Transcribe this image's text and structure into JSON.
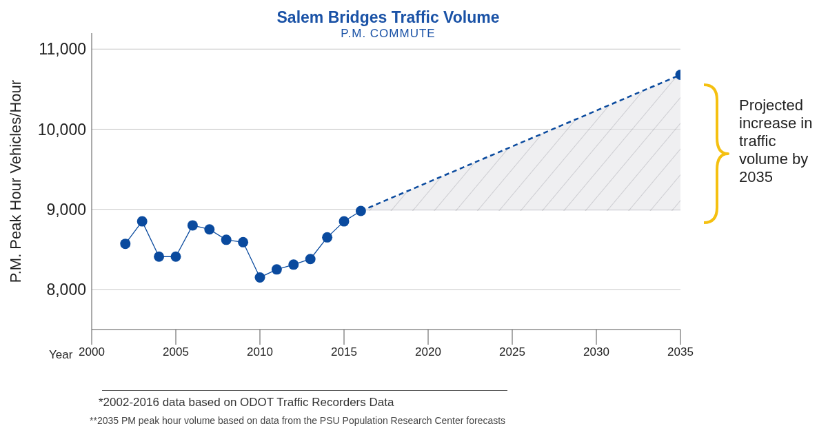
{
  "chart_data": {
    "type": "line",
    "title": "Salem Bridges Traffic Volume",
    "subtitle": "P.M. COMMUTE",
    "xlabel": "Year",
    "ylabel": "P.M. Peak Hour Vehicles/Hour",
    "series": [
      {
        "color": "#0a4a9e",
        "x": [
          2002,
          2003,
          2004,
          2005,
          2006,
          2007,
          2008,
          2009,
          2010,
          2011,
          2012,
          2013,
          2014,
          2015,
          2016
        ],
        "values": [
          8570,
          8850,
          8410,
          8410,
          8800,
          8750,
          8620,
          8590,
          8150,
          8250,
          8310,
          8380,
          8650,
          8850,
          8980
        ]
      },
      {
        "color": "#0a4a9e",
        "line_style": "dashed",
        "x": [
          2016,
          2035
        ],
        "values": [
          8980,
          10680
        ],
        "lower": [
          8980,
          8980
        ],
        "upper": [
          8980,
          10680
        ]
      }
    ],
    "xlim": [
      2000,
      2035
    ],
    "xticks": [
      2000,
      2005,
      2010,
      2015,
      2020,
      2025,
      2030,
      2035
    ],
    "ylim": [
      7500,
      11200
    ],
    "yticks": [
      {
        "value": 8000,
        "label": "8,000"
      },
      {
        "value": 9000,
        "label": "9,000"
      },
      {
        "value": 10000,
        "label": "10,000"
      },
      {
        "value": 11000,
        "label": "11,000"
      }
    ],
    "grid": "y",
    "marker": "circle",
    "line_style": "solid",
    "annotations": [
      "Projected increase in traffic volume by 2035",
      "*2002-2016 data based on ODOT Traffic Recorders Data",
      "**2035 PM peak hour volume based on data from the PSU Population Research Center forecasts"
    ]
  }
}
